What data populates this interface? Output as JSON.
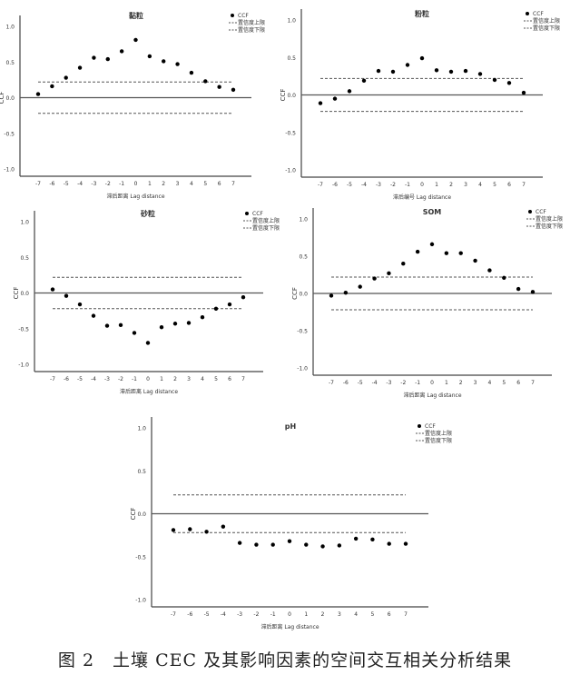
{
  "caption": "图 2　土壤 CEC 及其影响因素的空间交互相关分析结果",
  "legend": {
    "ccf": "CCF",
    "upper": "置信度上限",
    "lower": "置信度下限"
  },
  "chart_data": [
    {
      "type": "scatter",
      "title": "黏粒",
      "xlabel": "滞后距离 Lag distance",
      "ylabel": "CCF",
      "ylim": [
        -1,
        1
      ],
      "yticks": [
        "1.0",
        "0.5",
        "0.0",
        "-0.5",
        "-1.0"
      ],
      "x": [
        -7,
        -6,
        -5,
        -4,
        -3,
        -2,
        -1,
        0,
        1,
        2,
        3,
        4,
        5,
        6,
        7
      ],
      "values": [
        0.05,
        0.16,
        0.28,
        0.42,
        0.56,
        0.54,
        0.65,
        0.81,
        0.58,
        0.51,
        0.47,
        0.35,
        0.23,
        0.15,
        0.11
      ],
      "upper_confidence": 0.22,
      "lower_confidence": -0.22,
      "legend_position": "top-right",
      "grid": false
    },
    {
      "type": "scatter",
      "title": "粉粒",
      "xlabel": "滞后编号 Lag distance",
      "ylabel": "CCF",
      "ylim": [
        -1,
        1
      ],
      "yticks": [
        "1.0",
        "0.5",
        "0.0",
        "-0.5",
        "-1.0"
      ],
      "x": [
        -7,
        -6,
        -5,
        -4,
        -3,
        -2,
        -1,
        0,
        1,
        2,
        3,
        4,
        5,
        6,
        7
      ],
      "values": [
        -0.11,
        -0.05,
        0.05,
        0.19,
        0.32,
        0.31,
        0.4,
        0.49,
        0.33,
        0.31,
        0.32,
        0.28,
        0.2,
        0.16,
        0.03
      ],
      "upper_confidence": 0.22,
      "lower_confidence": -0.22,
      "legend_position": "top-right",
      "grid": false
    },
    {
      "type": "scatter",
      "title": "砂粒",
      "xlabel": "滞后距离 Lag distance",
      "ylabel": "CCF",
      "ylim": [
        -1,
        1
      ],
      "yticks": [
        "1.0",
        "0.5",
        "0.0",
        "-0.5",
        "-1.0"
      ],
      "x": [
        -7,
        -6,
        -5,
        -4,
        -3,
        -2,
        -1,
        0,
        1,
        2,
        3,
        4,
        5,
        6,
        7
      ],
      "values": [
        0.05,
        -0.04,
        -0.16,
        -0.32,
        -0.46,
        -0.45,
        -0.56,
        -0.7,
        -0.48,
        -0.43,
        -0.42,
        -0.34,
        -0.22,
        -0.16,
        -0.06
      ],
      "upper_confidence": 0.22,
      "lower_confidence": -0.22,
      "legend_position": "top-right",
      "grid": false
    },
    {
      "type": "scatter",
      "title": "SOM",
      "xlabel": "滞后距离 Lag distance",
      "ylabel": "CCF",
      "ylim": [
        -1,
        1
      ],
      "yticks": [
        "1.0",
        "0.5",
        "0.0",
        "-0.5",
        "-1.0"
      ],
      "x": [
        -7,
        -6,
        -5,
        -4,
        -3,
        -2,
        -1,
        0,
        1,
        2,
        3,
        4,
        5,
        6,
        7
      ],
      "values": [
        -0.03,
        0.01,
        0.09,
        0.2,
        0.27,
        0.4,
        0.56,
        0.66,
        0.54,
        0.54,
        0.44,
        0.31,
        0.21,
        0.06,
        0.02
      ],
      "upper_confidence": 0.22,
      "lower_confidence": -0.22,
      "legend_position": "top-right",
      "grid": false
    },
    {
      "type": "scatter",
      "title": "pH",
      "xlabel": "滞后距离 Lag distance",
      "ylabel": "CCF",
      "ylim": [
        -1,
        1
      ],
      "yticks": [
        "1.0",
        "0.5",
        "0.0",
        "-0.5",
        "-1.0"
      ],
      "x": [
        -7,
        -6,
        -5,
        -4,
        -3,
        -2,
        -1,
        0,
        1,
        2,
        3,
        4,
        5,
        6,
        7
      ],
      "values": [
        -0.19,
        -0.18,
        -0.21,
        -0.15,
        -0.34,
        -0.36,
        -0.36,
        -0.32,
        -0.36,
        -0.38,
        -0.37,
        -0.29,
        -0.3,
        -0.35,
        -0.35
      ],
      "upper_confidence": 0.22,
      "lower_confidence": -0.22,
      "legend_position": "top-right",
      "grid": false
    }
  ]
}
